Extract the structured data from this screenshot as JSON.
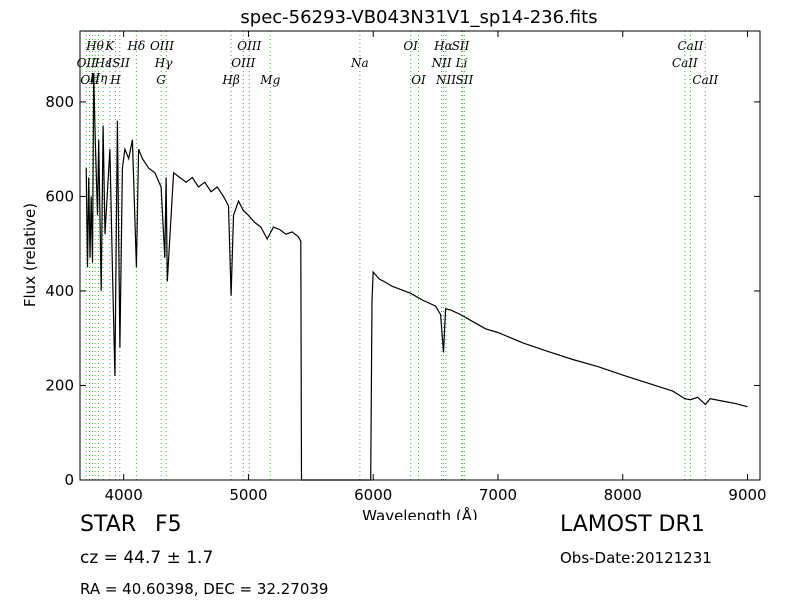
{
  "chart_data": {
    "type": "line",
    "title": "spec-56293-VB043N31V1_sp14-236.fits",
    "xlabel": "Wavelength (Å)",
    "ylabel": "Flux (relative)",
    "xlim": [
      3650,
      9100
    ],
    "ylim": [
      0,
      950
    ],
    "xticks": [
      4000,
      5000,
      6000,
      7000,
      8000,
      9000
    ],
    "yticks": [
      0,
      200,
      400,
      600,
      800
    ],
    "grid": false,
    "series": [
      {
        "x": [
          3700,
          3710,
          3720,
          3730,
          3740,
          3750,
          3760,
          3770,
          3790,
          3800,
          3820,
          3835,
          3850,
          3870,
          3890,
          3910,
          3930,
          3950,
          3970,
          3990,
          4010,
          4040,
          4070,
          4102,
          4120,
          4150,
          4200,
          4250,
          4300,
          4330,
          4340,
          4350,
          4400,
          4450,
          4500,
          4550,
          4600,
          4650,
          4700,
          4750,
          4800,
          4840,
          4861,
          4880,
          4920,
          4960,
          5000,
          5050,
          5100,
          5150,
          5200,
          5250,
          5300,
          5350,
          5400,
          5420,
          5425,
          5440,
          5500,
          5600,
          5700,
          5800,
          5900,
          5980,
          5990,
          6000,
          6050,
          6100,
          6150,
          6200,
          6300,
          6400,
          6500,
          6540,
          6563,
          6580,
          6620,
          6700,
          6800,
          6900,
          7000,
          7200,
          7400,
          7600,
          7800,
          8000,
          8200,
          8400,
          8498,
          8542,
          8600,
          8662,
          8700,
          8800,
          8900,
          9000
        ],
        "y": [
          660,
          450,
          640,
          470,
          600,
          460,
          860,
          740,
          560,
          720,
          400,
          750,
          520,
          610,
          700,
          450,
          220,
          760,
          280,
          660,
          700,
          680,
          720,
          450,
          700,
          680,
          660,
          650,
          620,
          470,
          640,
          420,
          650,
          640,
          630,
          640,
          620,
          630,
          610,
          620,
          600,
          580,
          390,
          560,
          590,
          570,
          560,
          545,
          535,
          510,
          535,
          530,
          520,
          525,
          515,
          505,
          0,
          0,
          0,
          0,
          0,
          0,
          0,
          0,
          380,
          440,
          425,
          418,
          410,
          405,
          395,
          380,
          368,
          350,
          270,
          362,
          360,
          350,
          335,
          320,
          312,
          290,
          272,
          255,
          240,
          222,
          205,
          188,
          172,
          170,
          175,
          160,
          172,
          167,
          162,
          155
        ]
      }
    ],
    "line_labels": [
      {
        "wave": 3700,
        "text": "OII",
        "row": 1
      },
      {
        "wave": 3730,
        "text": "OII",
        "row": 2
      },
      {
        "wave": 3770,
        "text": "Hθ",
        "row": 0
      },
      {
        "wave": 3798,
        "text": "Hη",
        "row": 1.6
      },
      {
        "wave": 3835,
        "text": "Hε",
        "row": 1
      },
      {
        "wave": 3888,
        "text": "K",
        "row": 0
      },
      {
        "wave": 3934,
        "text": "H",
        "row": 2
      },
      {
        "wave": 3960,
        "text": "ISII",
        "row": 1
      },
      {
        "wave": 4102,
        "text": "Hδ",
        "row": 0
      },
      {
        "wave": 4307,
        "text": "OIII",
        "row": 0
      },
      {
        "wave": 4320,
        "text": "Hγ",
        "row": 1
      },
      {
        "wave": 4300,
        "text": "G",
        "row": 2
      },
      {
        "wave": 4861,
        "text": "Hβ",
        "row": 2
      },
      {
        "wave": 4959,
        "text": "OIII",
        "row": 1
      },
      {
        "wave": 5007,
        "text": "OIII",
        "row": 0
      },
      {
        "wave": 5175,
        "text": "Mg",
        "row": 2
      },
      {
        "wave": 5893,
        "text": "Na",
        "row": 1
      },
      {
        "wave": 6300,
        "text": "OI",
        "row": 0
      },
      {
        "wave": 6363,
        "text": "OI",
        "row": 2
      },
      {
        "wave": 6563,
        "text": "Hα",
        "row": 0
      },
      {
        "wave": 6548,
        "text": "NII",
        "row": 1
      },
      {
        "wave": 6583,
        "text": "NII",
        "row": 2
      },
      {
        "wave": 6700,
        "text": "SII",
        "row": 0
      },
      {
        "wave": 6708,
        "text": "Li",
        "row": 1
      },
      {
        "wave": 6731,
        "text": "SII",
        "row": 2
      },
      {
        "wave": 8542,
        "text": "CaII",
        "row": 0
      },
      {
        "wave": 8498,
        "text": "CaII",
        "row": 1
      },
      {
        "wave": 8662,
        "text": "CaII",
        "row": 2
      }
    ],
    "marker_waves": [
      3700,
      3727,
      3750,
      3771,
      3798,
      3835,
      3889,
      3934,
      3969,
      4102,
      4300,
      4341,
      4861,
      4959,
      5007,
      5175,
      5893,
      6300,
      6363,
      6548,
      6563,
      6583,
      6708,
      6717,
      6731,
      8498,
      8542,
      8662
    ],
    "colors": {
      "spectrum": "#000000",
      "markers": "#33bb33",
      "axes": "#000000"
    }
  },
  "info": {
    "object_type": "STAR",
    "object_class": "F5",
    "survey": "LAMOST DR1",
    "redshift": "cz = 44.7 ± 1.7",
    "obs_date": "Obs-Date:20121231",
    "coordinates": "RA = 40.60398, DEC = 32.27039"
  }
}
